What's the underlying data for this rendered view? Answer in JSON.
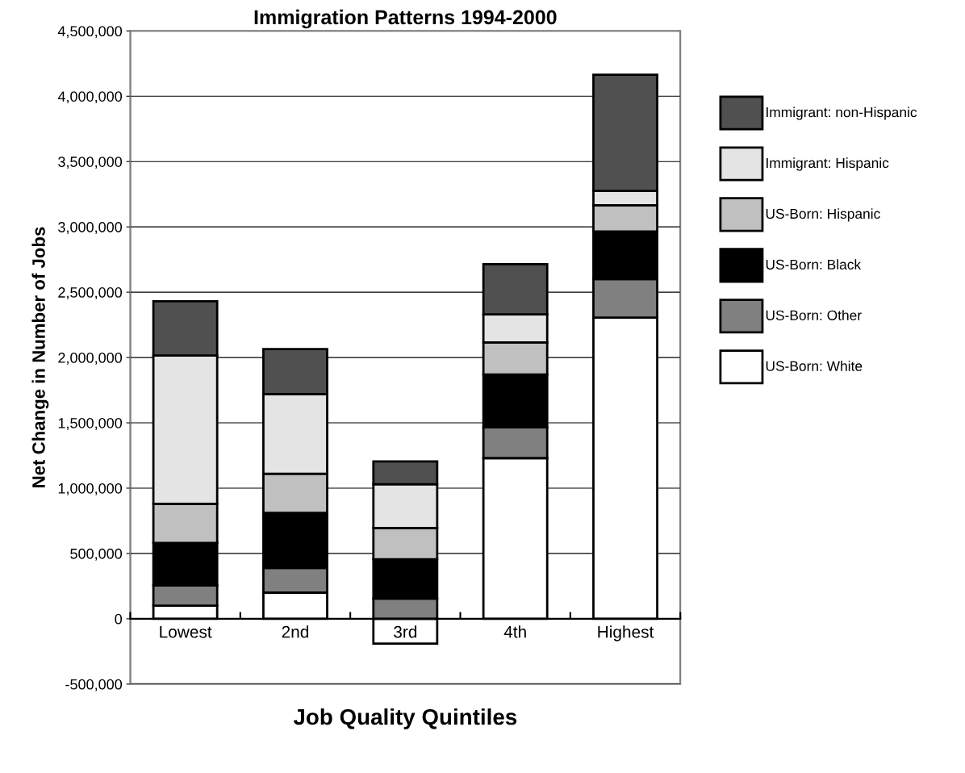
{
  "chart_data": {
    "type": "bar",
    "stacked": true,
    "title": "Immigration Patterns 1994-2000",
    "xlabel": "Job Quality Quintiles",
    "ylabel": "Net Change in Number of Jobs",
    "categories": [
      "Lowest",
      "2nd",
      "3rd",
      "4th",
      "Highest"
    ],
    "series": [
      {
        "name": "US-Born: White",
        "color": "#ffffff",
        "values": [
          100000,
          200000,
          -190000,
          1230000,
          2305000
        ]
      },
      {
        "name": "US-Born: Other",
        "color": "#808080",
        "values": [
          155000,
          190000,
          155000,
          235000,
          295000
        ]
      },
      {
        "name": "US-Born: Black",
        "color": "#000000",
        "values": [
          325000,
          420000,
          300000,
          405000,
          365000
        ]
      },
      {
        "name": "US-Born: Hispanic",
        "color": "#c0c0c0",
        "values": [
          300000,
          300000,
          240000,
          245000,
          200000
        ]
      },
      {
        "name": "Immigrant: Hispanic",
        "color": "#e4e4e4",
        "values": [
          1135000,
          610000,
          335000,
          215000,
          110000
        ]
      },
      {
        "name": "Immigrant: non-Hispanic",
        "color": "#505050",
        "values": [
          415000,
          345000,
          175000,
          385000,
          890000
        ]
      }
    ],
    "ylim": [
      -500000,
      4500000
    ],
    "yticks": [
      {
        "value": -500000,
        "label": "-500,000"
      },
      0,
      {
        "value": 500000,
        "label": "500,000"
      },
      {
        "value": 1000000,
        "label": "1,000,000"
      },
      {
        "value": 1500000,
        "label": "1,500,000"
      },
      {
        "value": 2000000,
        "label": "2,000,000"
      },
      {
        "value": 2500000,
        "label": "2,500,000"
      },
      {
        "value": 3000000,
        "label": "3,000,000"
      },
      {
        "value": 3500000,
        "label": "3,500,000"
      },
      {
        "value": 4000000,
        "label": "4,000,000"
      },
      {
        "value": 4500000,
        "label": "4,500,000"
      }
    ],
    "grid": "y",
    "legend": "right"
  }
}
